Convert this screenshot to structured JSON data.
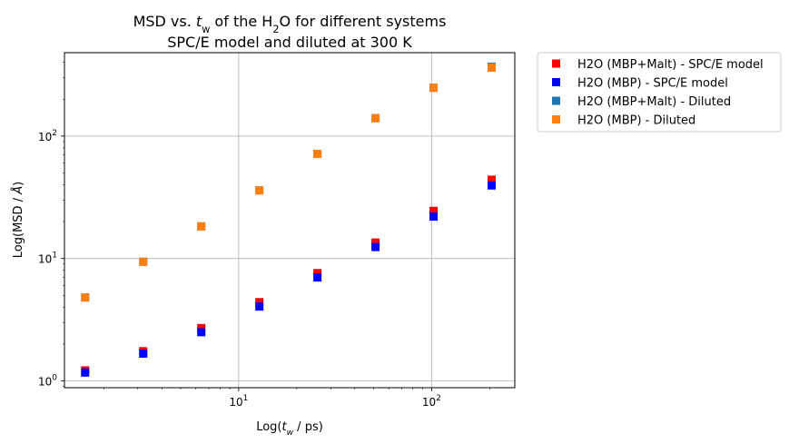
{
  "chart_data": {
    "type": "scatter",
    "title": {
      "line1": {
        "pre": "MSD vs. ",
        "var": "t",
        "var_sub": "w",
        "mid": " of the H",
        "sub": "2",
        "post": "O for different systems"
      },
      "line2": "SPC/E model and diluted at 300 K"
    },
    "xlabel": {
      "pre": "Log(",
      "var": "t",
      "var_sub": "w",
      "post": " / ps)"
    },
    "ylabel": {
      "pre": "Log(MSD / ",
      "var": "Å",
      "post": ")"
    },
    "xscale": "log",
    "yscale": "log",
    "xlim": [
      1.25,
      270
    ],
    "ylim": [
      0.88,
      480
    ],
    "xticks": [
      {
        "value": 10,
        "base": "10",
        "exp": "1"
      },
      {
        "value": 100,
        "base": "10",
        "exp": "2"
      }
    ],
    "yticks": [
      {
        "value": 1,
        "base": "10",
        "exp": "0"
      },
      {
        "value": 10,
        "base": "10",
        "exp": "1"
      },
      {
        "value": 100,
        "base": "10",
        "exp": "2"
      }
    ],
    "grid": true,
    "legend_position": "outside-top-right",
    "x": [
      1.6,
      3.2,
      6.4,
      12.8,
      25.6,
      51.2,
      102.4,
      204.8
    ],
    "series": [
      {
        "name": "H2O (MBP+Malt) - SPC/E model",
        "color": "#ff0000",
        "values": [
          1.22,
          1.75,
          2.7,
          4.4,
          7.6,
          13.5,
          24.5,
          44
        ]
      },
      {
        "name": "H2O (MBP) - SPC/E model",
        "color": "#0000ff",
        "values": [
          1.17,
          1.67,
          2.5,
          4.05,
          7.0,
          12.4,
          22.0,
          39.5
        ]
      },
      {
        "name": "H2O (MBP+Malt) - Diluted",
        "color": "#1f77b4",
        "values": [
          4.8,
          9.4,
          18.3,
          36.0,
          71.5,
          140,
          248,
          368
        ]
      },
      {
        "name": "H2O (MBP) - Diluted",
        "color": "#ff7f0e",
        "values": [
          4.8,
          9.4,
          18.3,
          36.0,
          71.5,
          140,
          248,
          362
        ]
      }
    ]
  }
}
